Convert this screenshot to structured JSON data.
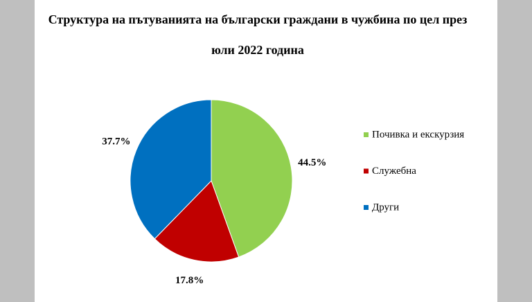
{
  "chart_data": {
    "type": "pie",
    "title": "Структура на пътуванията на български граждани в чужбина по цел през юли 2022 година",
    "categories": [
      "Почивка и екскурзия",
      "Служебна",
      "Други"
    ],
    "values": [
      44.5,
      17.8,
      37.7
    ],
    "value_labels": [
      "44.5%",
      "17.8%",
      "37.7%"
    ],
    "colors": [
      "#92d050",
      "#c00000",
      "#0070c0"
    ],
    "legend": "right"
  }
}
